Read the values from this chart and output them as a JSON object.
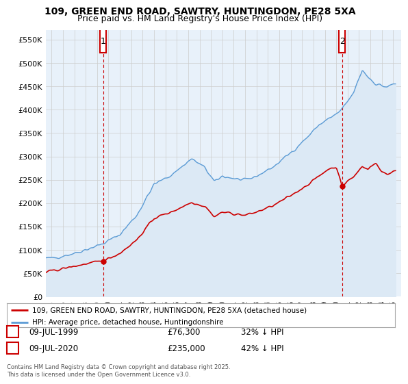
{
  "title": "109, GREEN END ROAD, SAWTRY, HUNTINGDON, PE28 5XA",
  "subtitle": "Price paid vs. HM Land Registry's House Price Index (HPI)",
  "ylabel_ticks": [
    "£0",
    "£50K",
    "£100K",
    "£150K",
    "£200K",
    "£250K",
    "£300K",
    "£350K",
    "£400K",
    "£450K",
    "£500K",
    "£550K"
  ],
  "ytick_values": [
    0,
    50000,
    100000,
    150000,
    200000,
    250000,
    300000,
    350000,
    400000,
    450000,
    500000,
    550000
  ],
  "ylim": [
    0,
    570000
  ],
  "xlim_start": 1994.5,
  "xlim_end": 2025.7,
  "sale1_year": 1999.52,
  "sale1_price": 76300,
  "sale1_label": "1",
  "sale2_year": 2020.52,
  "sale2_price": 235000,
  "sale2_label": "2",
  "legend_line1": "109, GREEN END ROAD, SAWTRY, HUNTINGDON, PE28 5XA (detached house)",
  "legend_line2": "HPI: Average price, detached house, Huntingdonshire",
  "table_row1": [
    "1",
    "09-JUL-1999",
    "£76,300",
    "32% ↓ HPI"
  ],
  "table_row2": [
    "2",
    "09-JUL-2020",
    "£235,000",
    "42% ↓ HPI"
  ],
  "footer": "Contains HM Land Registry data © Crown copyright and database right 2025.\nThis data is licensed under the Open Government Licence v3.0.",
  "red_color": "#cc0000",
  "blue_color": "#5b9bd5",
  "fill_color": "#dce9f5",
  "background_color": "#ffffff",
  "grid_color": "#cccccc",
  "plot_bg_color": "#e8f1fa",
  "title_fontsize": 10,
  "subtitle_fontsize": 9,
  "tick_fontsize": 8,
  "xticks": [
    1995,
    1996,
    1997,
    1998,
    1999,
    2000,
    2001,
    2002,
    2003,
    2004,
    2005,
    2006,
    2007,
    2008,
    2009,
    2010,
    2011,
    2012,
    2013,
    2014,
    2015,
    2016,
    2017,
    2018,
    2019,
    2020,
    2021,
    2022,
    2023,
    2024,
    2025
  ]
}
